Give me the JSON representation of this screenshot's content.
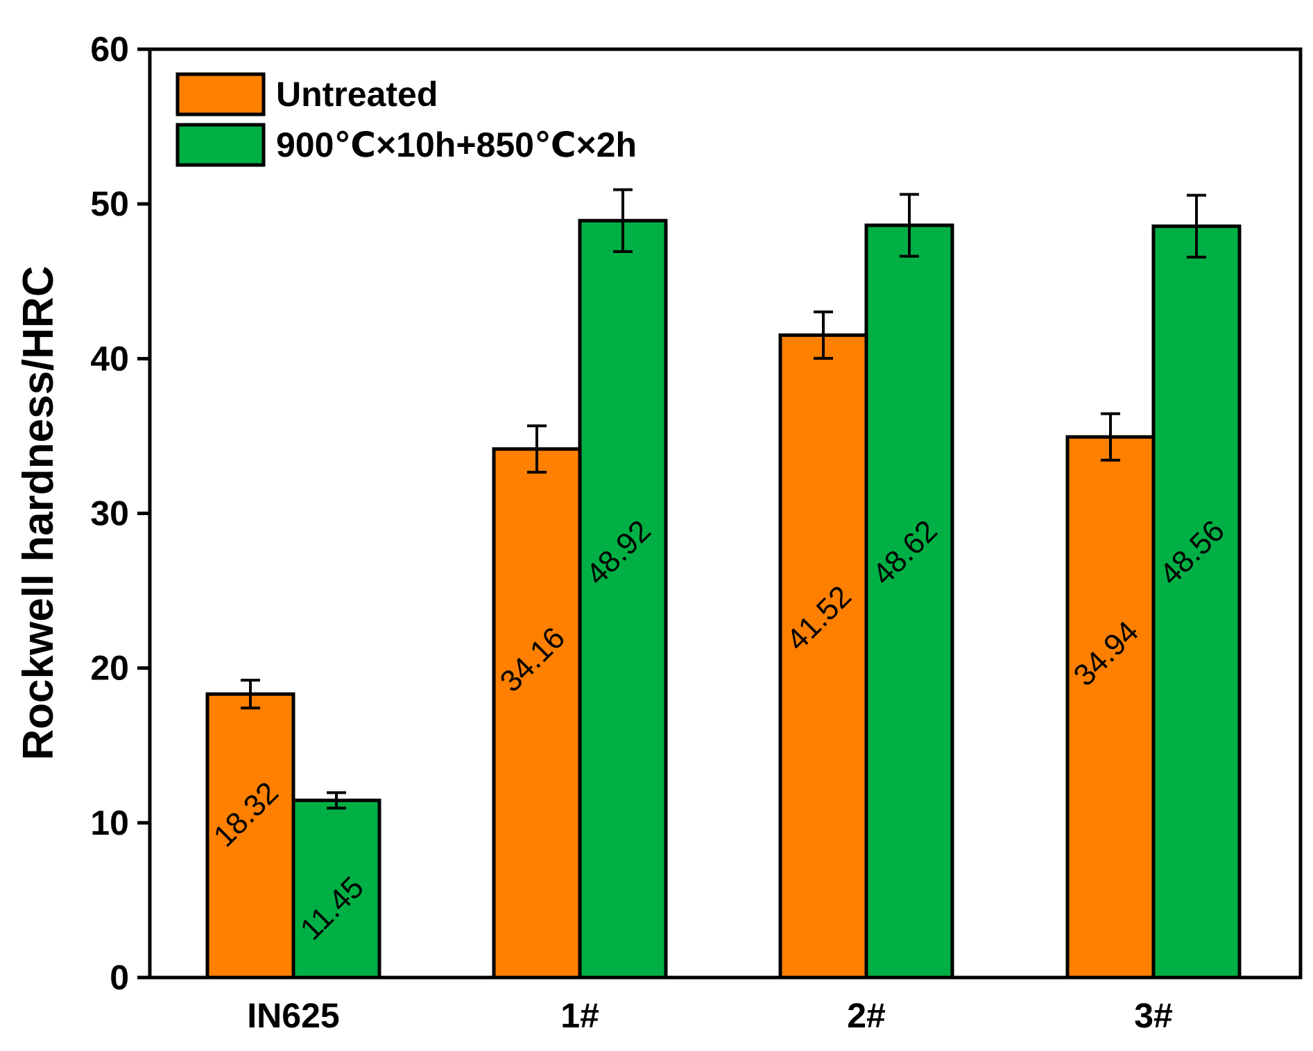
{
  "chart_data": {
    "type": "bar",
    "title": "",
    "xlabel": "",
    "ylabel": "Rockwell hardness/HRC",
    "ylim": [
      0,
      60
    ],
    "yticks": [
      "0",
      "10",
      "20",
      "30",
      "40",
      "50",
      "60"
    ],
    "categories": [
      "IN625",
      "1#",
      "2#",
      "3#"
    ],
    "series": [
      {
        "name": "Untreated",
        "color": "#ff8000",
        "values": [
          18.32,
          34.16,
          41.52,
          34.94
        ],
        "errors": [
          0.9,
          1.5,
          1.5,
          1.5
        ],
        "labels": [
          "18.32",
          "34.16",
          "41.52",
          "34.94"
        ]
      },
      {
        "name": "900℃×10h+850℃×2h",
        "color": "#00b044",
        "values": [
          11.45,
          48.92,
          48.62,
          48.56
        ],
        "errors": [
          0.5,
          2.0,
          2.0,
          2.0
        ],
        "labels": [
          "11.45",
          "48.92",
          "48.62",
          "48.56"
        ]
      }
    ],
    "grid": false,
    "legend": "top-left"
  }
}
